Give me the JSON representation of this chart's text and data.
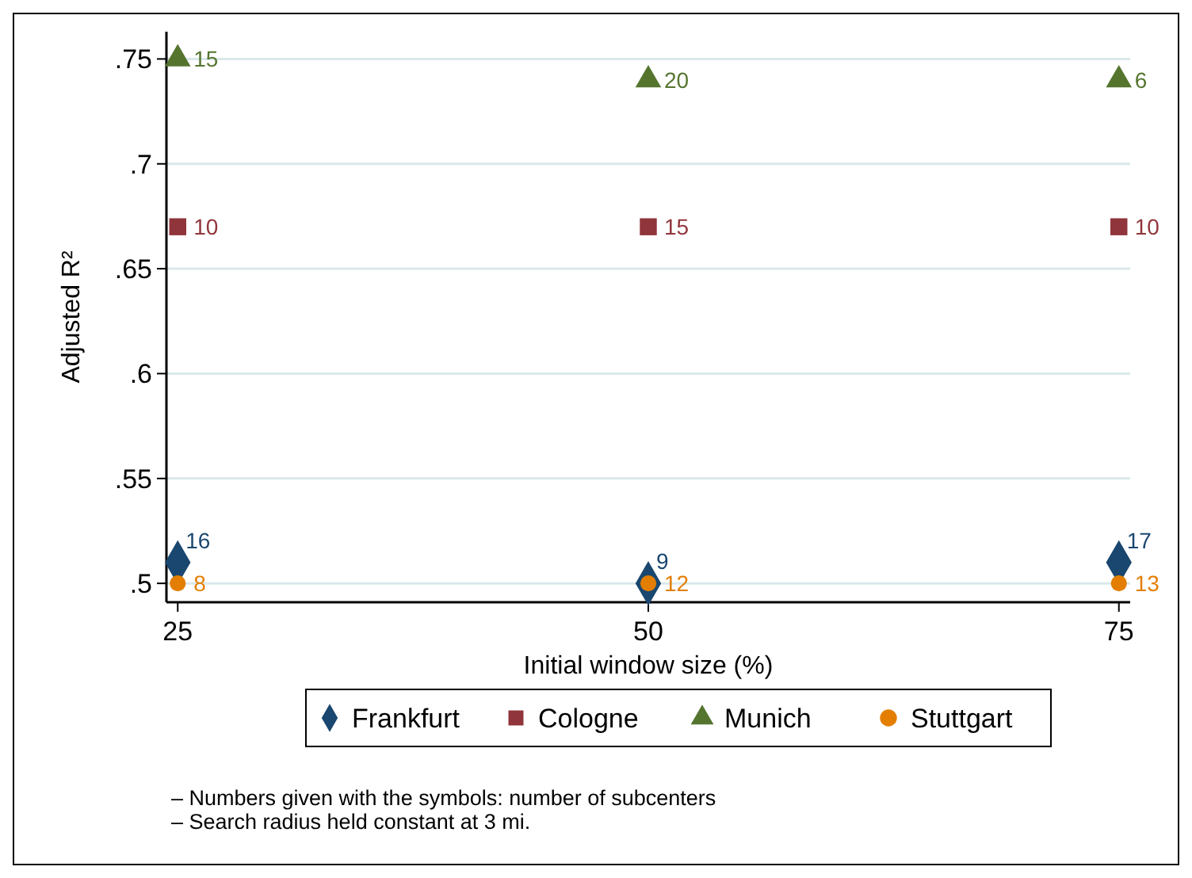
{
  "chart_data": {
    "type": "scatter",
    "xlabel": "Initial window size (%)",
    "ylabel": "Adjusted R²",
    "x": [
      25,
      50,
      75
    ],
    "xlim": [
      24.4,
      75.6
    ],
    "xticks": [
      25,
      50,
      75
    ],
    "ylim": [
      0.491,
      0.763
    ],
    "yticks": [
      {
        "value": 0.5,
        "label": ".5"
      },
      {
        "value": 0.55,
        "label": ".55"
      },
      {
        "value": 0.6,
        "label": ".6"
      },
      {
        "value": 0.65,
        "label": ".65"
      },
      {
        "value": 0.7,
        "label": ".7"
      },
      {
        "value": 0.75,
        "label": ".75"
      }
    ],
    "grid": "y",
    "legend": "bottom",
    "series": [
      {
        "name": "Frankfurt",
        "color": "#1a476f",
        "marker": "diamond",
        "values": [
          0.51,
          0.5,
          0.51
        ]
      },
      {
        "name": "Cologne",
        "color": "#90353b",
        "marker": "square",
        "values": [
          0.67,
          0.67,
          0.67
        ]
      },
      {
        "name": "Munich",
        "color": "#55752f",
        "marker": "triangle",
        "values": [
          0.75,
          0.74,
          0.74
        ]
      },
      {
        "name": "Stuttgart",
        "color": "#e37e00",
        "marker": "circle",
        "values": [
          0.5,
          0.5,
          0.5
        ]
      }
    ],
    "annotations": [
      {
        "text": "16",
        "x": 25,
        "y": 0.51
      },
      {
        "text": "9",
        "x": 50,
        "y": 0.5
      },
      {
        "text": "17",
        "x": 75,
        "y": 0.51
      },
      {
        "text": "10",
        "x": 25,
        "y": 0.67
      },
      {
        "text": "15",
        "x": 50,
        "y": 0.67
      },
      {
        "text": "10",
        "x": 75,
        "y": 0.67
      },
      {
        "text": "15",
        "x": 25,
        "y": 0.75
      },
      {
        "text": "20",
        "x": 50,
        "y": 0.74
      },
      {
        "text": "6",
        "x": 75,
        "y": 0.74
      },
      {
        "text": "8",
        "x": 25,
        "y": 0.5
      },
      {
        "text": "12",
        "x": 50,
        "y": 0.5
      },
      {
        "text": "13",
        "x": 75,
        "y": 0.5
      },
      "– Numbers given with the symbols: number of subcenters",
      "– Search radius held constant at 3 mi."
    ]
  }
}
